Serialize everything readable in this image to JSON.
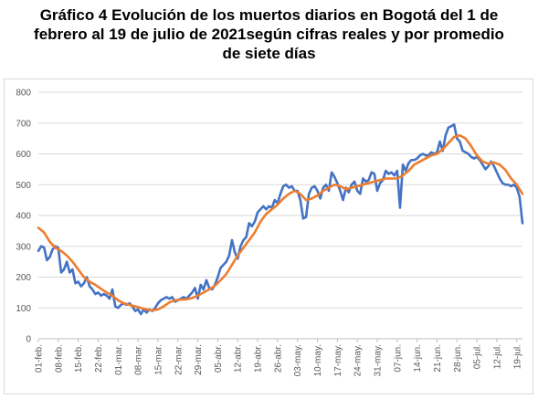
{
  "chart_data": {
    "type": "line",
    "title_lines": [
      "Gráfico 4 Evolución de los muertos diarios en Bogotá del 1 de",
      "febrero al 19 de julio de 2021según cifras reales y por promedio",
      "de siete días"
    ],
    "xlabel": "",
    "ylabel": "",
    "ylim": [
      0,
      800
    ],
    "yticks": [
      0,
      100,
      200,
      300,
      400,
      500,
      600,
      700,
      800
    ],
    "grid": true,
    "legend": "none",
    "x_tick_labels": [
      "01-feb.",
      "08-feb.",
      "15-feb.",
      "22-feb.",
      "01-mar.",
      "08-mar.",
      "15-mar.",
      "22-mar.",
      "29-mar.",
      "05-abr.",
      "12-abr.",
      "19-abr.",
      "26-abr.",
      "03-may.",
      "10-may.",
      "17-may.",
      "24-may.",
      "31-may.",
      "07-jun.",
      "14-jun.",
      "21-jun.",
      "28-jun.",
      "05-jul.",
      "12-jul.",
      "19-jul."
    ],
    "x_tick_day_index": [
      0,
      7,
      14,
      21,
      28,
      35,
      42,
      49,
      56,
      63,
      70,
      77,
      84,
      91,
      98,
      105,
      112,
      119,
      126,
      133,
      140,
      147,
      154,
      161,
      168
    ],
    "series": [
      {
        "key": "daily",
        "color": "#4472c4",
        "points": [
          [
            0,
            285
          ],
          [
            1,
            300
          ],
          [
            2,
            296
          ],
          [
            3,
            255
          ],
          [
            4,
            265
          ],
          [
            5,
            290
          ],
          [
            6,
            300
          ],
          [
            7,
            295
          ],
          [
            8,
            215
          ],
          [
            9,
            225
          ],
          [
            10,
            250
          ],
          [
            11,
            215
          ],
          [
            12,
            225
          ],
          [
            13,
            180
          ],
          [
            14,
            185
          ],
          [
            15,
            170
          ],
          [
            16,
            180
          ],
          [
            17,
            200
          ],
          [
            18,
            170
          ],
          [
            19,
            160
          ],
          [
            20,
            145
          ],
          [
            21,
            150
          ],
          [
            22,
            140
          ],
          [
            23,
            145
          ],
          [
            24,
            140
          ],
          [
            25,
            130
          ],
          [
            26,
            160
          ],
          [
            27,
            105
          ],
          [
            28,
            100
          ],
          [
            29,
            110
          ],
          [
            30,
            115
          ],
          [
            31,
            110
          ],
          [
            32,
            115
          ],
          [
            33,
            105
          ],
          [
            34,
            90
          ],
          [
            35,
            95
          ],
          [
            36,
            80
          ],
          [
            37,
            95
          ],
          [
            38,
            85
          ],
          [
            39,
            95
          ],
          [
            40,
            90
          ],
          [
            41,
            100
          ],
          [
            42,
            115
          ],
          [
            43,
            125
          ],
          [
            44,
            130
          ],
          [
            45,
            135
          ],
          [
            46,
            130
          ],
          [
            47,
            135
          ],
          [
            48,
            120
          ],
          [
            49,
            125
          ],
          [
            50,
            130
          ],
          [
            51,
            135
          ],
          [
            52,
            130
          ],
          [
            53,
            140
          ],
          [
            54,
            150
          ],
          [
            55,
            165
          ],
          [
            56,
            130
          ],
          [
            57,
            175
          ],
          [
            58,
            160
          ],
          [
            59,
            190
          ],
          [
            60,
            165
          ],
          [
            61,
            160
          ],
          [
            62,
            175
          ],
          [
            63,
            200
          ],
          [
            64,
            230
          ],
          [
            65,
            240
          ],
          [
            66,
            250
          ],
          [
            67,
            270
          ],
          [
            68,
            320
          ],
          [
            69,
            280
          ],
          [
            70,
            260
          ],
          [
            71,
            300
          ],
          [
            72,
            320
          ],
          [
            73,
            330
          ],
          [
            74,
            375
          ],
          [
            75,
            365
          ],
          [
            76,
            380
          ],
          [
            77,
            410
          ],
          [
            78,
            420
          ],
          [
            79,
            430
          ],
          [
            80,
            420
          ],
          [
            81,
            430
          ],
          [
            82,
            425
          ],
          [
            83,
            450
          ],
          [
            84,
            440
          ],
          [
            85,
            470
          ],
          [
            86,
            495
          ],
          [
            87,
            500
          ],
          [
            88,
            490
          ],
          [
            89,
            495
          ],
          [
            90,
            480
          ],
          [
            91,
            480
          ],
          [
            92,
            450
          ],
          [
            93,
            390
          ],
          [
            94,
            395
          ],
          [
            95,
            470
          ],
          [
            96,
            490
          ],
          [
            97,
            495
          ],
          [
            98,
            480
          ],
          [
            99,
            455
          ],
          [
            100,
            490
          ],
          [
            101,
            500
          ],
          [
            102,
            480
          ],
          [
            103,
            540
          ],
          [
            104,
            525
          ],
          [
            105,
            505
          ],
          [
            106,
            480
          ],
          [
            107,
            450
          ],
          [
            108,
            490
          ],
          [
            109,
            475
          ],
          [
            110,
            500
          ],
          [
            111,
            510
          ],
          [
            112,
            480
          ],
          [
            113,
            470
          ],
          [
            114,
            520
          ],
          [
            115,
            510
          ],
          [
            116,
            515
          ],
          [
            117,
            540
          ],
          [
            118,
            535
          ],
          [
            119,
            480
          ],
          [
            120,
            505
          ],
          [
            121,
            515
          ],
          [
            122,
            545
          ],
          [
            123,
            535
          ],
          [
            124,
            540
          ],
          [
            125,
            530
          ],
          [
            126,
            545
          ],
          [
            127,
            425
          ],
          [
            128,
            565
          ],
          [
            129,
            545
          ],
          [
            130,
            570
          ],
          [
            131,
            580
          ],
          [
            132,
            580
          ],
          [
            133,
            585
          ],
          [
            134,
            595
          ],
          [
            135,
            600
          ],
          [
            136,
            595
          ],
          [
            137,
            595
          ],
          [
            138,
            605
          ],
          [
            139,
            600
          ],
          [
            140,
            605
          ],
          [
            141,
            640
          ],
          [
            142,
            610
          ],
          [
            143,
            660
          ],
          [
            144,
            685
          ],
          [
            145,
            690
          ],
          [
            146,
            695
          ],
          [
            147,
            650
          ],
          [
            148,
            640
          ],
          [
            149,
            610
          ],
          [
            150,
            605
          ],
          [
            151,
            600
          ],
          [
            152,
            590
          ],
          [
            153,
            585
          ],
          [
            154,
            590
          ],
          [
            155,
            580
          ],
          [
            156,
            565
          ],
          [
            157,
            550
          ],
          [
            158,
            560
          ],
          [
            159,
            575
          ],
          [
            160,
            560
          ],
          [
            161,
            540
          ],
          [
            162,
            520
          ],
          [
            163,
            505
          ],
          [
            164,
            500
          ],
          [
            165,
            500
          ],
          [
            166,
            495
          ],
          [
            167,
            500
          ],
          [
            168,
            490
          ],
          [
            169,
            460
          ],
          [
            170,
            375
          ]
        ]
      },
      {
        "key": "avg7",
        "color": "#ed7d31",
        "points": [
          [
            0,
            360
          ],
          [
            2,
            345
          ],
          [
            4,
            315
          ],
          [
            6,
            295
          ],
          [
            8,
            285
          ],
          [
            10,
            270
          ],
          [
            12,
            250
          ],
          [
            14,
            225
          ],
          [
            16,
            200
          ],
          [
            18,
            185
          ],
          [
            20,
            175
          ],
          [
            22,
            162
          ],
          [
            24,
            150
          ],
          [
            26,
            140
          ],
          [
            28,
            125
          ],
          [
            30,
            115
          ],
          [
            32,
            110
          ],
          [
            34,
            105
          ],
          [
            36,
            100
          ],
          [
            38,
            95
          ],
          [
            40,
            92
          ],
          [
            42,
            95
          ],
          [
            44,
            105
          ],
          [
            46,
            118
          ],
          [
            48,
            125
          ],
          [
            50,
            127
          ],
          [
            52,
            128
          ],
          [
            54,
            132
          ],
          [
            56,
            140
          ],
          [
            58,
            150
          ],
          [
            60,
            160
          ],
          [
            62,
            172
          ],
          [
            64,
            190
          ],
          [
            66,
            210
          ],
          [
            68,
            240
          ],
          [
            70,
            270
          ],
          [
            72,
            295
          ],
          [
            74,
            320
          ],
          [
            76,
            345
          ],
          [
            78,
            380
          ],
          [
            80,
            405
          ],
          [
            82,
            420
          ],
          [
            84,
            435
          ],
          [
            86,
            455
          ],
          [
            88,
            470
          ],
          [
            90,
            480
          ],
          [
            92,
            470
          ],
          [
            94,
            450
          ],
          [
            96,
            455
          ],
          [
            98,
            465
          ],
          [
            100,
            480
          ],
          [
            102,
            490
          ],
          [
            104,
            500
          ],
          [
            106,
            495
          ],
          [
            108,
            485
          ],
          [
            110,
            490
          ],
          [
            112,
            495
          ],
          [
            114,
            500
          ],
          [
            116,
            505
          ],
          [
            118,
            510
          ],
          [
            120,
            515
          ],
          [
            122,
            520
          ],
          [
            124,
            520
          ],
          [
            126,
            520
          ],
          [
            128,
            530
          ],
          [
            130,
            545
          ],
          [
            132,
            565
          ],
          [
            134,
            575
          ],
          [
            136,
            585
          ],
          [
            138,
            595
          ],
          [
            140,
            600
          ],
          [
            142,
            615
          ],
          [
            144,
            635
          ],
          [
            146,
            655
          ],
          [
            148,
            660
          ],
          [
            150,
            650
          ],
          [
            152,
            625
          ],
          [
            154,
            595
          ],
          [
            156,
            575
          ],
          [
            158,
            568
          ],
          [
            160,
            572
          ],
          [
            162,
            565
          ],
          [
            164,
            548
          ],
          [
            166,
            520
          ],
          [
            168,
            500
          ],
          [
            170,
            470
          ]
        ]
      }
    ]
  }
}
